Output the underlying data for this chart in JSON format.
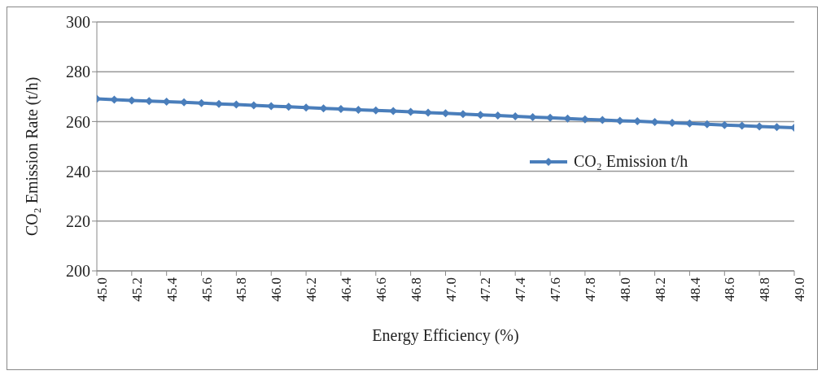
{
  "chart_data": {
    "type": "line",
    "xlabel": "Energy Efficiency (%)",
    "ylabel": "CO₂ Emission Rate (t/h)",
    "x": [
      45,
      45.1,
      45.2,
      45.3,
      45.4,
      45.5,
      45.6,
      45.7,
      45.8,
      45.9,
      46,
      46.1,
      46.2,
      46.3,
      46.4,
      46.5,
      46.6,
      46.7,
      46.8,
      46.9,
      47,
      47.1,
      47.2,
      47.3,
      47.4,
      47.5,
      47.6,
      47.7,
      47.8,
      47.9,
      48,
      48.1,
      48.2,
      48.3,
      48.4,
      48.5,
      48.6,
      48.7,
      48.8,
      48.9,
      49
    ],
    "series": [
      {
        "name": "CO₂ Emission t/h",
        "color": "#4a7ebb",
        "values": [
          269.1,
          268.8,
          268.5,
          268.2,
          268.0,
          267.7,
          267.4,
          267.1,
          266.8,
          266.5,
          266.2,
          265.9,
          265.6,
          265.3,
          265.0,
          264.7,
          264.5,
          264.2,
          263.9,
          263.6,
          263.3,
          263.0,
          262.7,
          262.4,
          262.1,
          261.8,
          261.5,
          261.2,
          260.9,
          260.6,
          260.3,
          260.1,
          259.8,
          259.5,
          259.2,
          258.9,
          258.6,
          258.3,
          258.0,
          257.8,
          257.5
        ]
      }
    ],
    "xlim": [
      45,
      49
    ],
    "xticks": [
      {
        "value": 45,
        "label": "45.0"
      },
      {
        "value": 45.2,
        "label": "45.2"
      },
      {
        "value": 45.4,
        "label": "45.4"
      },
      {
        "value": 45.6,
        "label": "45.6"
      },
      {
        "value": 45.8,
        "label": "45.8"
      },
      {
        "value": 46,
        "label": "46.0"
      },
      {
        "value": 46.2,
        "label": "46.2"
      },
      {
        "value": 46.4,
        "label": "46.4"
      },
      {
        "value": 46.6,
        "label": "46.6"
      },
      {
        "value": 46.8,
        "label": "46.8"
      },
      {
        "value": 47,
        "label": "47.0"
      },
      {
        "value": 47.2,
        "label": "47.2"
      },
      {
        "value": 47.4,
        "label": "47.4"
      },
      {
        "value": 47.6,
        "label": "47.6"
      },
      {
        "value": 47.8,
        "label": "47.8"
      },
      {
        "value": 48,
        "label": "48.0"
      },
      {
        "value": 48.2,
        "label": "48.2"
      },
      {
        "value": 48.4,
        "label": "48.4"
      },
      {
        "value": 48.6,
        "label": "48.6"
      },
      {
        "value": 48.8,
        "label": "48.8"
      },
      {
        "value": 49,
        "label": "49.0"
      }
    ],
    "ylim": [
      200,
      300
    ],
    "yticks": [
      200,
      220,
      240,
      260,
      280,
      300
    ],
    "grid": "y",
    "legend": "right",
    "marker": "diamond",
    "line_style": "solid"
  }
}
